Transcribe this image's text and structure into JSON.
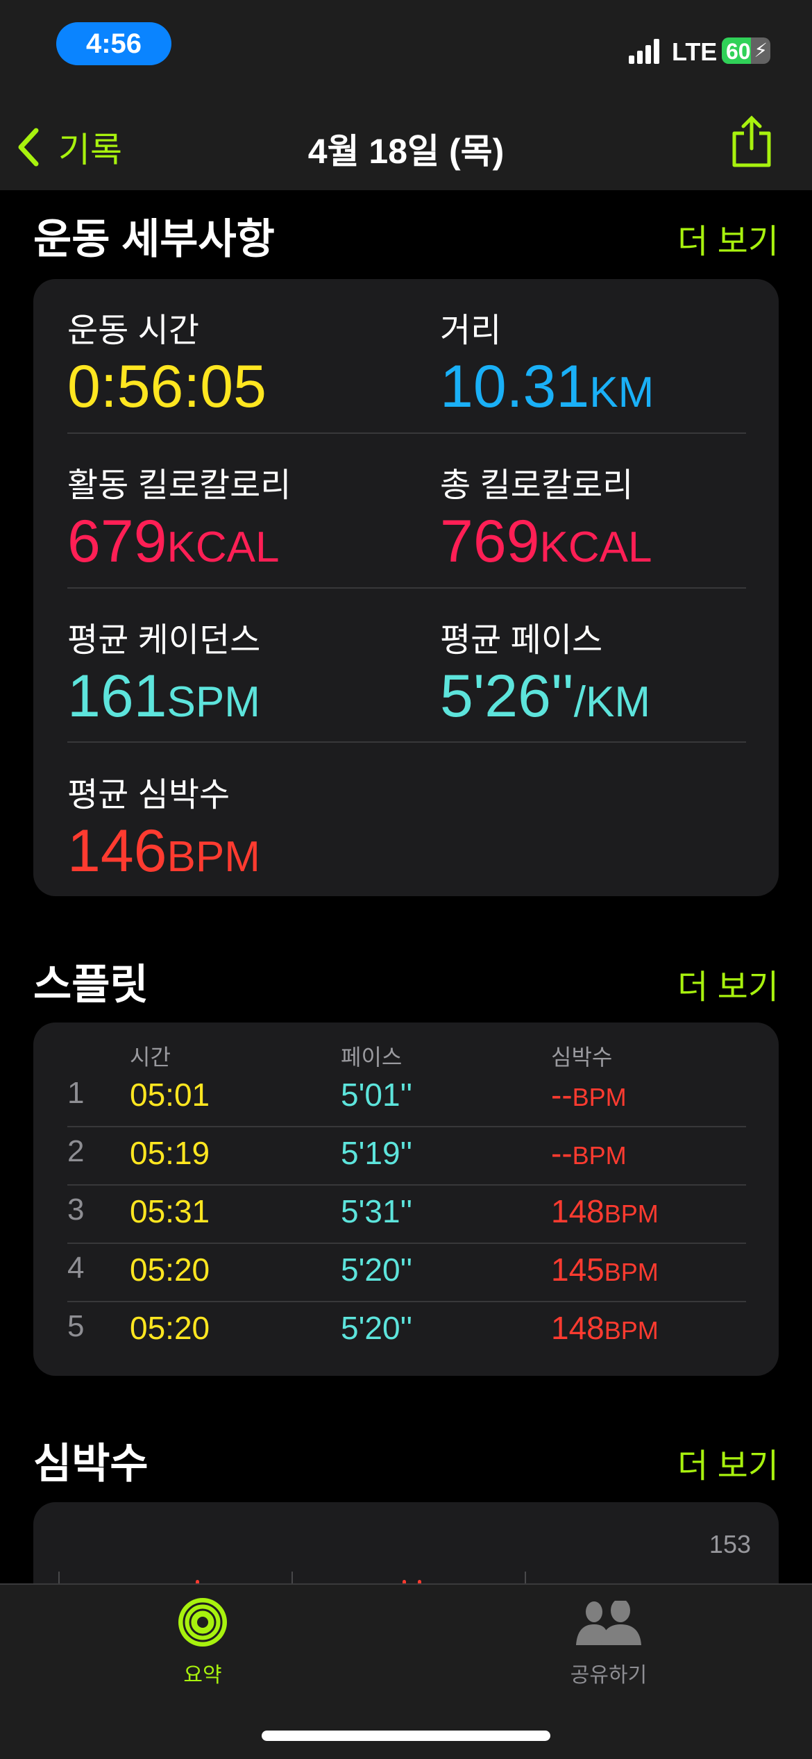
{
  "status_bar": {
    "time": "4:56",
    "network": "LTE",
    "battery": "60",
    "battery_level_percent": 60,
    "signal_bars": 4
  },
  "nav": {
    "back_label": "기록",
    "title": "4월 18일 (목)",
    "icons": {
      "back": "chevron-left-icon",
      "share": "share-icon"
    }
  },
  "colors": {
    "accent": "#a8f20e",
    "time": "#ffe620",
    "distance": "#1ab0f7",
    "calories": "#ff1f55",
    "cadence_pace": "#5de4dc",
    "heart": "#ff3b30"
  },
  "details": {
    "title": "운동 세부사항",
    "more": "더 보기",
    "metrics": [
      {
        "label": "운동 시간",
        "value": "0:56:05",
        "unit": ""
      },
      {
        "label": "거리",
        "value": "10.31",
        "unit": "KM"
      },
      {
        "label": "활동 킬로칼로리",
        "value": "679",
        "unit": "KCAL"
      },
      {
        "label": "총 킬로칼로리",
        "value": "769",
        "unit": "KCAL"
      },
      {
        "label": "평균 케이던스",
        "value": "161",
        "unit": "SPM"
      },
      {
        "label": "평균 페이스",
        "value": "5'26''",
        "unit": "/KM"
      },
      {
        "label": "평균 심박수",
        "value": "146",
        "unit": "BPM"
      }
    ]
  },
  "splits": {
    "title": "스플릿",
    "more": "더 보기",
    "headers": {
      "time": "시간",
      "pace": "페이스",
      "hr": "심박수"
    },
    "rows": [
      {
        "n": "1",
        "time": "05:01",
        "pace": "5'01''",
        "hr": "--",
        "unit": "BPM"
      },
      {
        "n": "2",
        "time": "05:19",
        "pace": "5'19''",
        "hr": "--",
        "unit": "BPM"
      },
      {
        "n": "3",
        "time": "05:31",
        "pace": "5'31''",
        "hr": "148",
        "unit": "BPM"
      },
      {
        "n": "4",
        "time": "05:20",
        "pace": "5'20''",
        "hr": "145",
        "unit": "BPM"
      },
      {
        "n": "5",
        "time": "05:20",
        "pace": "5'20''",
        "hr": "148",
        "unit": "BPM"
      }
    ]
  },
  "heart_rate": {
    "title": "심박수",
    "more": "더 보기",
    "max_label": "153"
  },
  "tabbar": {
    "items": [
      {
        "label": "요약",
        "icon": "activity-rings-icon",
        "active": true
      },
      {
        "label": "공유하기",
        "icon": "people-icon",
        "active": false
      }
    ]
  }
}
